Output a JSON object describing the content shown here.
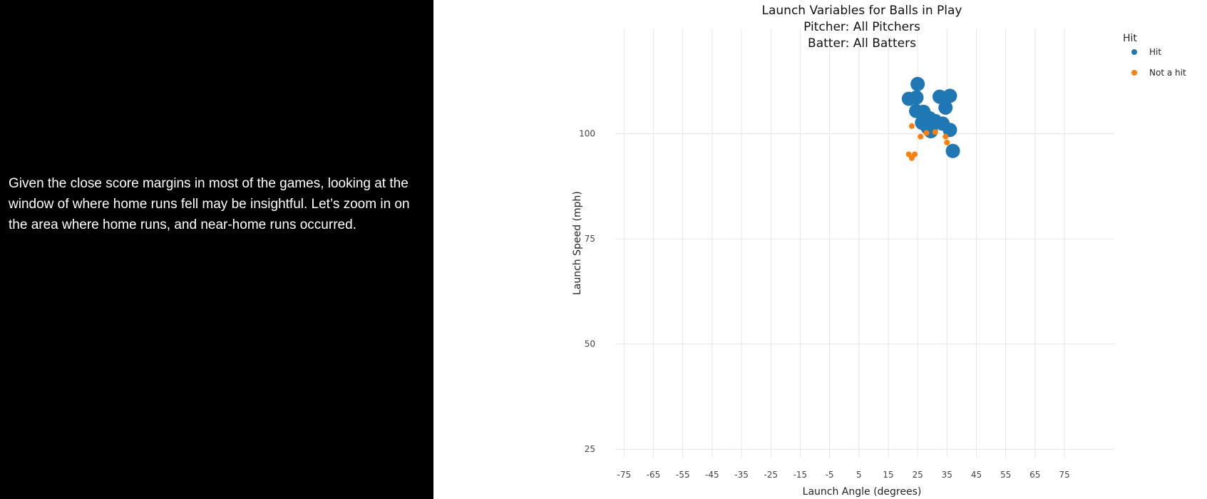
{
  "story": {
    "text": "Given the close score margins in most of the games, looking at the window of where home runs fell may be insightful. Let’s zoom in on the area where home runs, and near-home runs occurred."
  },
  "chart_data": {
    "type": "scatter",
    "title_lines": [
      "Launch Variables for Balls in Play",
      "Pitcher: All Pitchers",
      "Batter: All Batters"
    ],
    "xlabel": "Launch Angle (degrees)",
    "ylabel": "Launch Speed (mph)",
    "xlim": [
      -78,
      92
    ],
    "ylim": [
      23,
      125
    ],
    "x_ticks": [
      -75,
      -65,
      -55,
      -45,
      -35,
      -25,
      -15,
      -5,
      5,
      15,
      25,
      35,
      45,
      55,
      65,
      75
    ],
    "y_ticks": [
      25,
      50,
      75,
      100
    ],
    "grid": true,
    "legend": {
      "title": "Hit",
      "position": "top-right",
      "entries": [
        {
          "name": "Hit",
          "color": "#1f77b4"
        },
        {
          "name": "Not a hit",
          "color": "#ff7f0e"
        }
      ]
    },
    "series": [
      {
        "name": "Hit",
        "color": "#1f77b4",
        "marker": "large",
        "points": [
          {
            "x": 25,
            "y": 111.8
          },
          {
            "x": 22,
            "y": 108.3
          },
          {
            "x": 24.6,
            "y": 108.6
          },
          {
            "x": 24.5,
            "y": 105.4
          },
          {
            "x": 27,
            "y": 105.2
          },
          {
            "x": 32.5,
            "y": 108.8
          },
          {
            "x": 36,
            "y": 109.0
          },
          {
            "x": 34.5,
            "y": 106.2
          },
          {
            "x": 29,
            "y": 103.7
          },
          {
            "x": 31,
            "y": 103.0
          },
          {
            "x": 26.5,
            "y": 102.6
          },
          {
            "x": 33.5,
            "y": 102.4
          },
          {
            "x": 29.5,
            "y": 101.7
          },
          {
            "x": 28.5,
            "y": 101.4
          },
          {
            "x": 36,
            "y": 100.9
          },
          {
            "x": 29.5,
            "y": 100.6
          },
          {
            "x": 37,
            "y": 95.9
          }
        ]
      },
      {
        "name": "Not a hit",
        "color": "#ff7f0e",
        "marker": "small",
        "points": [
          {
            "x": 23,
            "y": 101.8
          },
          {
            "x": 26,
            "y": 99.3
          },
          {
            "x": 28,
            "y": 100.2
          },
          {
            "x": 31,
            "y": 100.4
          },
          {
            "x": 34.5,
            "y": 99.3
          },
          {
            "x": 35,
            "y": 97.9
          },
          {
            "x": 22,
            "y": 95.1
          },
          {
            "x": 24,
            "y": 95.1
          },
          {
            "x": 23,
            "y": 94.2
          }
        ]
      }
    ]
  }
}
